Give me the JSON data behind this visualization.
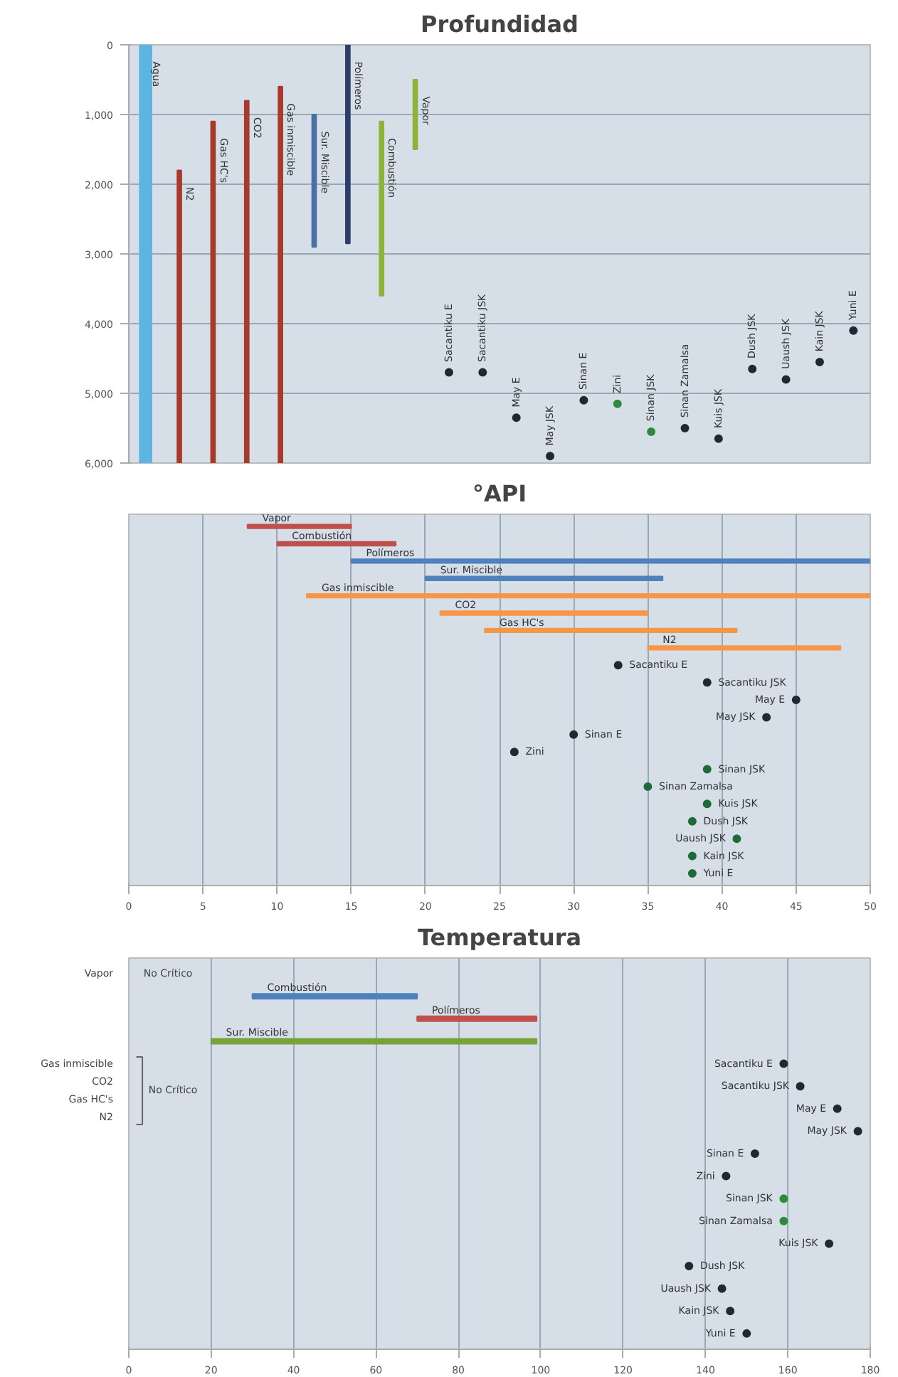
{
  "chart_data": [
    {
      "type": "bar",
      "title": "Profundidad",
      "orientation": "vertical",
      "tick_labels": "y",
      "grid": "y",
      "categories": [
        "Agua",
        "N2",
        "Gas HC's",
        "CO2",
        "Gas inmiscible",
        "Sur. Miscible",
        "Polímeros",
        "Combustión",
        "Vapor",
        "Sacantiku E",
        "Sacantiku JSK",
        "May E",
        "May JSK",
        "Sinan E",
        "Zini",
        "Sinan JSK",
        "Sinan Zamalsa",
        "Kuis JSK",
        "Dush JSK",
        "Uaush JSK",
        "Kain JSK",
        "Yuni E"
      ],
      "ylim": [
        6000,
        0
      ],
      "yticks": [
        0,
        {
          "value": 1000,
          "label": "1,000"
        },
        {
          "value": 2000,
          "label": "2,000"
        },
        {
          "value": 3000,
          "label": "3,000"
        },
        {
          "value": 4000,
          "label": "4,000"
        },
        {
          "value": 5000,
          "label": "5,000"
        },
        {
          "value": 6000,
          "label": "6,000"
        }
      ],
      "series": [
        {
          "colors": [
            "#5bb5e0",
            "#a83a2c",
            "#a83a2c",
            "#a83a2c",
            "#a83a2c",
            "#4a6fa5",
            "#2c3e6b",
            "#8db33a",
            "#8db33a",
            null,
            null,
            null,
            null,
            null,
            null,
            null,
            null,
            null,
            null,
            null,
            null,
            null
          ],
          "base": [
            0,
            1800,
            1100,
            800,
            600,
            1000,
            0,
            1100,
            500,
            null,
            null,
            null,
            null,
            null,
            null,
            null,
            null,
            null,
            null,
            null,
            null,
            null
          ],
          "values": [
            6000,
            4200,
            4900,
            5200,
            5400,
            1900,
            2850,
            2500,
            1000,
            null,
            null,
            null,
            null,
            null,
            null,
            null,
            null,
            null,
            null,
            null,
            null,
            null
          ]
        },
        {
          "type": "scatter",
          "colors": [
            null,
            null,
            null,
            null,
            null,
            null,
            null,
            null,
            null,
            "#1f2a30",
            "#1f2a30",
            "#1f2a30",
            "#1f2a30",
            "#1f2a30",
            "#2e8b3a",
            "#2e8b3a",
            "#1f2a30",
            "#1f2a30",
            "#1f2a30",
            "#1f2a30",
            "#1f2a30",
            "#1f2a30"
          ],
          "values": [
            null,
            null,
            null,
            null,
            null,
            null,
            null,
            null,
            null,
            4700,
            4700,
            5350,
            5900,
            5100,
            5150,
            5550,
            5500,
            5650,
            4650,
            4800,
            4550,
            4100
          ]
        }
      ]
    },
    {
      "type": "bar",
      "title": "°API",
      "orientation": "horizontal",
      "tick_labels": "x",
      "grid": "x",
      "categories": [
        "Vapor",
        "Combustión",
        "Polímeros",
        "Sur. Miscible",
        "Gas inmiscible",
        "CO2",
        "Gas HC's",
        "N2",
        "Sacantiku E",
        "Sacantiku JSK",
        "May E",
        "May JSK",
        "Sinan E",
        "Zini",
        "Sinan JSK",
        "Sinan Zamalsa",
        "Kuis JSK",
        "Dush JSK",
        "Uaush JSK",
        "Kain JSK",
        "Yuni E"
      ],
      "xlim": [
        0,
        50
      ],
      "xticks": [
        0,
        5,
        10,
        15,
        20,
        25,
        30,
        35,
        40,
        45,
        50
      ],
      "series": [
        {
          "colors": [
            "#c0504d",
            "#c0504d",
            "#4f81bd",
            "#4f81bd",
            "#f79646",
            "#f79646",
            "#f79646",
            "#f79646",
            null,
            null,
            null,
            null,
            null,
            null,
            null,
            null,
            null,
            null,
            null,
            null,
            null
          ],
          "base": [
            8,
            10,
            15,
            20,
            12,
            21,
            24,
            35,
            null,
            null,
            null,
            null,
            null,
            null,
            null,
            null,
            null,
            null,
            null,
            null,
            null
          ],
          "values": [
            7,
            8,
            35,
            16,
            38,
            14,
            17,
            13,
            null,
            null,
            null,
            null,
            null,
            null,
            null,
            null,
            null,
            null,
            null,
            null,
            null
          ]
        },
        {
          "type": "scatter",
          "colors": [
            null,
            null,
            null,
            null,
            null,
            null,
            null,
            null,
            "#1f2a30",
            "#1f2a30",
            "#1f2a30",
            "#1f2a30",
            "#1f2a30",
            "#1f2a30",
            "#1e6b3a",
            "#1e6b3a",
            "#1e6b3a",
            "#1e6b3a",
            "#1e6b3a",
            "#1e6b3a",
            "#1e6b3a"
          ],
          "values": [
            null,
            null,
            null,
            null,
            null,
            null,
            null,
            null,
            33,
            39,
            45,
            43,
            30,
            26,
            39,
            35,
            39,
            38,
            41,
            38,
            38
          ]
        }
      ]
    },
    {
      "type": "bar",
      "title": "Temperatura",
      "orientation": "horizontal",
      "tick_labels": "x",
      "grid": "x",
      "annotations": [
        "Vapor",
        "No Crítico",
        "Gas inmiscible",
        "CO2",
        "Gas HC's",
        "N2",
        "No Crítico"
      ],
      "categories": [
        "Combustión",
        "Polímeros",
        "Sur. Miscible",
        "Sacantiku E",
        "Sacantiku JSK",
        "May E",
        "May JSK",
        "Sinan E",
        "Zini",
        "Sinan JSK",
        "Sinan Zamalsa",
        "Kuis JSK",
        "Dush JSK",
        "Uaush JSK",
        "Kain JSK",
        "Yuni E"
      ],
      "xlim": [
        0,
        180
      ],
      "xticks": [
        0,
        20,
        40,
        60,
        80,
        100,
        120,
        140,
        160,
        180
      ],
      "series": [
        {
          "colors": [
            "#4f81bd",
            "#c0504d",
            "#77a33a",
            null,
            null,
            null,
            null,
            null,
            null,
            null,
            null,
            null,
            null,
            null,
            null,
            null
          ],
          "base": [
            30,
            70,
            20,
            null,
            null,
            null,
            null,
            null,
            null,
            null,
            null,
            null,
            null,
            null,
            null,
            null
          ],
          "values": [
            40,
            29,
            79,
            null,
            null,
            null,
            null,
            null,
            null,
            null,
            null,
            null,
            null,
            null,
            null,
            null
          ]
        },
        {
          "type": "scatter",
          "colors": [
            null,
            null,
            null,
            "#1f2a30",
            "#1f2a30",
            "#1f2a30",
            "#1f2a30",
            "#1f2a30",
            "#1f2a30",
            "#2e8b3a",
            "#2e8b3a",
            "#1f2a30",
            "#1f2a30",
            "#1f2a30",
            "#1f2a30",
            "#1f2a30"
          ],
          "values": [
            null,
            null,
            null,
            159,
            163,
            172,
            177,
            152,
            145,
            159,
            159,
            170,
            136,
            144,
            146,
            150
          ]
        }
      ]
    }
  ]
}
